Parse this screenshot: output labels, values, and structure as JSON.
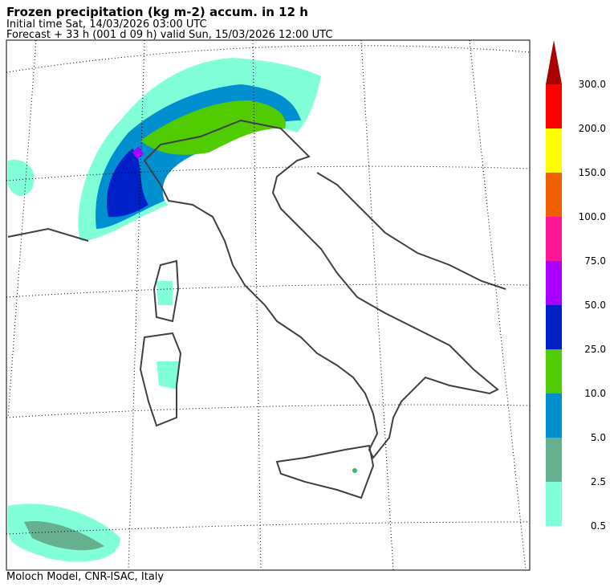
{
  "header": {
    "title": "Frozen precipitation (kg m-2) accum. in 12 h",
    "initial_time": "Initial time  Sat, 14/03/2026  03:00 UTC",
    "forecast": "Forecast  +  33 h  (001 d 09 h)  valid Sun, 15/03/2026 12:00 UTC"
  },
  "footer": "Moloch Model, CNR-ISAC, Italy",
  "colorbar": {
    "labels": [
      "0.5",
      "2.5",
      "5.0",
      "10.0",
      "25.0",
      "50.0",
      "75.0",
      "100.0",
      "150.0",
      "200.0",
      "300.0"
    ],
    "colors": [
      "#80ffd8",
      "#66b090",
      "#0090d0",
      "#50cc00",
      "#0020c8",
      "#aa00ff",
      "#ff1493",
      "#f06000",
      "#ffff00",
      "#ff0000"
    ],
    "over_color": "#aa0000"
  }
}
